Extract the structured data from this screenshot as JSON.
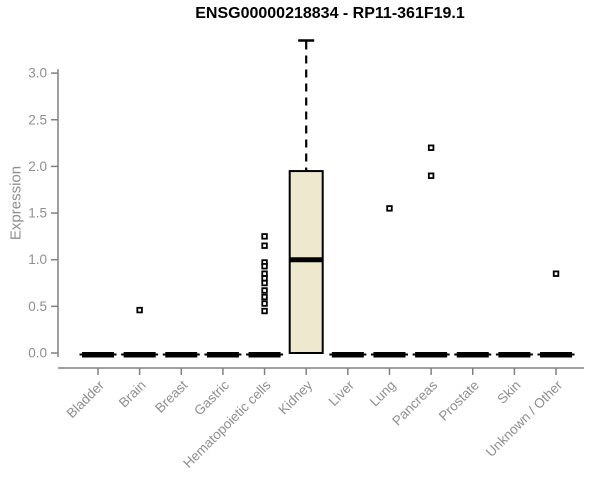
{
  "title": "ENSG00000218834 - RP11-361F19.1",
  "chart_data": {
    "type": "boxplot",
    "title": "ENSG00000218834 - RP11-361F19.1",
    "xlabel": "",
    "ylabel": "Expression",
    "ylim": [
      0,
      3.35
    ],
    "yticks": [
      0,
      0.5,
      1,
      1.5,
      2,
      2.5,
      3
    ],
    "grid": false,
    "categories": [
      "Bladder",
      "Brain",
      "Breast",
      "Gastric",
      "Hematopoietic cells",
      "Kidney",
      "Liver",
      "Lung",
      "Pancreas",
      "Prostate",
      "Skin",
      "Unknown / Other"
    ],
    "boxes": [
      {
        "category": "Bladder",
        "whisker_low": 0,
        "q1": 0,
        "median": 0,
        "q3": 0,
        "whisker_high": 0,
        "outliers": []
      },
      {
        "category": "Brain",
        "whisker_low": 0,
        "q1": 0,
        "median": 0,
        "q3": 0,
        "whisker_high": 0,
        "outliers": [
          0.46
        ]
      },
      {
        "category": "Breast",
        "whisker_low": 0,
        "q1": 0,
        "median": 0,
        "q3": 0,
        "whisker_high": 0,
        "outliers": []
      },
      {
        "category": "Gastric",
        "whisker_low": 0,
        "q1": 0,
        "median": 0,
        "q3": 0,
        "whisker_high": 0,
        "outliers": []
      },
      {
        "category": "Hematopoietic cells",
        "whisker_low": 0,
        "q1": 0,
        "median": 0,
        "q3": 0,
        "whisker_high": 0,
        "outliers": [
          1.25,
          1.15,
          0.97,
          0.93,
          0.85,
          0.8,
          0.75,
          0.67,
          0.6,
          0.53,
          0.45
        ]
      },
      {
        "category": "Kidney",
        "whisker_low": 0,
        "q1": 0,
        "median": 1.0,
        "q3": 1.95,
        "whisker_high": 3.35,
        "outliers": []
      },
      {
        "category": "Liver",
        "whisker_low": 0,
        "q1": 0,
        "median": 0,
        "q3": 0,
        "whisker_high": 0,
        "outliers": []
      },
      {
        "category": "Lung",
        "whisker_low": 0,
        "q1": 0,
        "median": 0,
        "q3": 0,
        "whisker_high": 0,
        "outliers": [
          1.55
        ]
      },
      {
        "category": "Pancreas",
        "whisker_low": 0,
        "q1": 0,
        "median": 0,
        "q3": 0,
        "whisker_high": 0,
        "outliers": [
          2.2,
          1.9
        ]
      },
      {
        "category": "Prostate",
        "whisker_low": 0,
        "q1": 0,
        "median": 0,
        "q3": 0,
        "whisker_high": 0,
        "outliers": []
      },
      {
        "category": "Skin",
        "whisker_low": 0,
        "q1": 0,
        "median": 0,
        "q3": 0,
        "whisker_high": 0,
        "outliers": []
      },
      {
        "category": "Unknown / Other",
        "whisker_low": 0,
        "q1": 0,
        "median": 0,
        "q3": 0,
        "whisker_high": 0,
        "outliers": [
          0.85
        ]
      }
    ],
    "style": {
      "box_fill": "#EDE8CE",
      "box_stroke": "#000000",
      "axis_color": "#808080",
      "label_color": "#8F8F8F",
      "title_color": "#000000",
      "background": "#FFFFFF"
    }
  }
}
